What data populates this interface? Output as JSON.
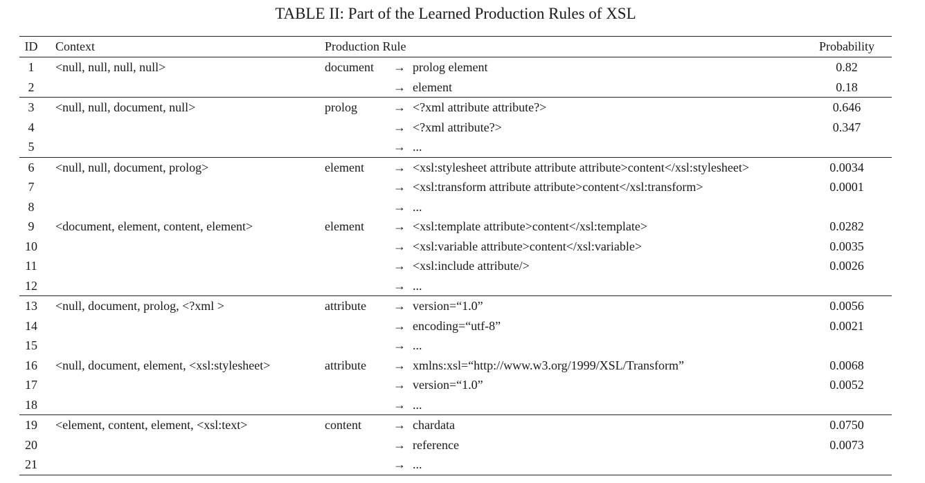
{
  "caption": "TABLE II: Part of the Learned Production Rules of XSL",
  "headers": {
    "id": "ID",
    "context": "Context",
    "rule": "Production Rule",
    "probability": "Probability"
  },
  "arrow": "→",
  "groups": [
    {
      "rows": [
        {
          "id": "1",
          "context": "<null, null, null, null>",
          "lhs": "document",
          "rhs": "prolog element",
          "prob": "0.82"
        },
        {
          "id": "2",
          "context": "",
          "lhs": "",
          "rhs": "element",
          "prob": "0.18"
        }
      ]
    },
    {
      "rows": [
        {
          "id": "3",
          "context": "<null, null, document, null>",
          "lhs": "prolog",
          "rhs": "<?xml attribute attribute?>",
          "prob": "0.646"
        },
        {
          "id": "4",
          "context": "",
          "lhs": "",
          "rhs": "<?xml attribute?>",
          "prob": "0.347"
        },
        {
          "id": "5",
          "context": "",
          "lhs": "",
          "rhs": "...",
          "prob": ""
        }
      ]
    },
    {
      "rows": [
        {
          "id": "6",
          "context": "<null, null, document, prolog>",
          "lhs": "element",
          "rhs": "<xsl:stylesheet attribute attribute attribute>content</xsl:stylesheet>",
          "prob": "0.0034"
        },
        {
          "id": "7",
          "context": "",
          "lhs": "",
          "rhs": "<xsl:transform attribute attribute>content</xsl:transform>",
          "prob": "0.0001"
        },
        {
          "id": "8",
          "context": "",
          "lhs": "",
          "rhs": "...",
          "prob": ""
        },
        {
          "id": "9",
          "context": "<document, element, content, element>",
          "lhs": "element",
          "rhs": "<xsl:template attribute>content</xsl:template>",
          "prob": "0.0282"
        },
        {
          "id": "10",
          "context": "",
          "lhs": "",
          "rhs": "<xsl:variable attribute>content</xsl:variable>",
          "prob": "0.0035"
        },
        {
          "id": "11",
          "context": "",
          "lhs": "",
          "rhs": "<xsl:include attribute/>",
          "prob": "0.0026"
        },
        {
          "id": "12",
          "context": "",
          "lhs": "",
          "rhs": "...",
          "prob": ""
        }
      ]
    },
    {
      "rows": [
        {
          "id": "13",
          "context": "<null, document, prolog, <?xml >",
          "lhs": "attribute",
          "rhs": "version=“1.0”",
          "prob": "0.0056"
        },
        {
          "id": "14",
          "context": "",
          "lhs": "",
          "rhs": "encoding=“utf-8”",
          "prob": "0.0021"
        },
        {
          "id": "15",
          "context": "",
          "lhs": "",
          "rhs": "...",
          "prob": ""
        },
        {
          "id": "16",
          "context": "<null, document, element, <xsl:stylesheet>",
          "lhs": "attribute",
          "rhs": "xmlns:xsl=“http://www.w3.org/1999/XSL/Transform”",
          "prob": "0.0068"
        },
        {
          "id": "17",
          "context": "",
          "lhs": "",
          "rhs": "version=“1.0”",
          "prob": "0.0052"
        },
        {
          "id": "18",
          "context": "",
          "lhs": "",
          "rhs": "...",
          "prob": ""
        }
      ]
    },
    {
      "rows": [
        {
          "id": "19",
          "context": "<element, content, element, <xsl:text>",
          "lhs": "content",
          "rhs": "chardata",
          "prob": "0.0750"
        },
        {
          "id": "20",
          "context": "",
          "lhs": "",
          "rhs": "reference",
          "prob": "0.0073"
        },
        {
          "id": "21",
          "context": "",
          "lhs": "",
          "rhs": "...",
          "prob": ""
        }
      ]
    }
  ]
}
